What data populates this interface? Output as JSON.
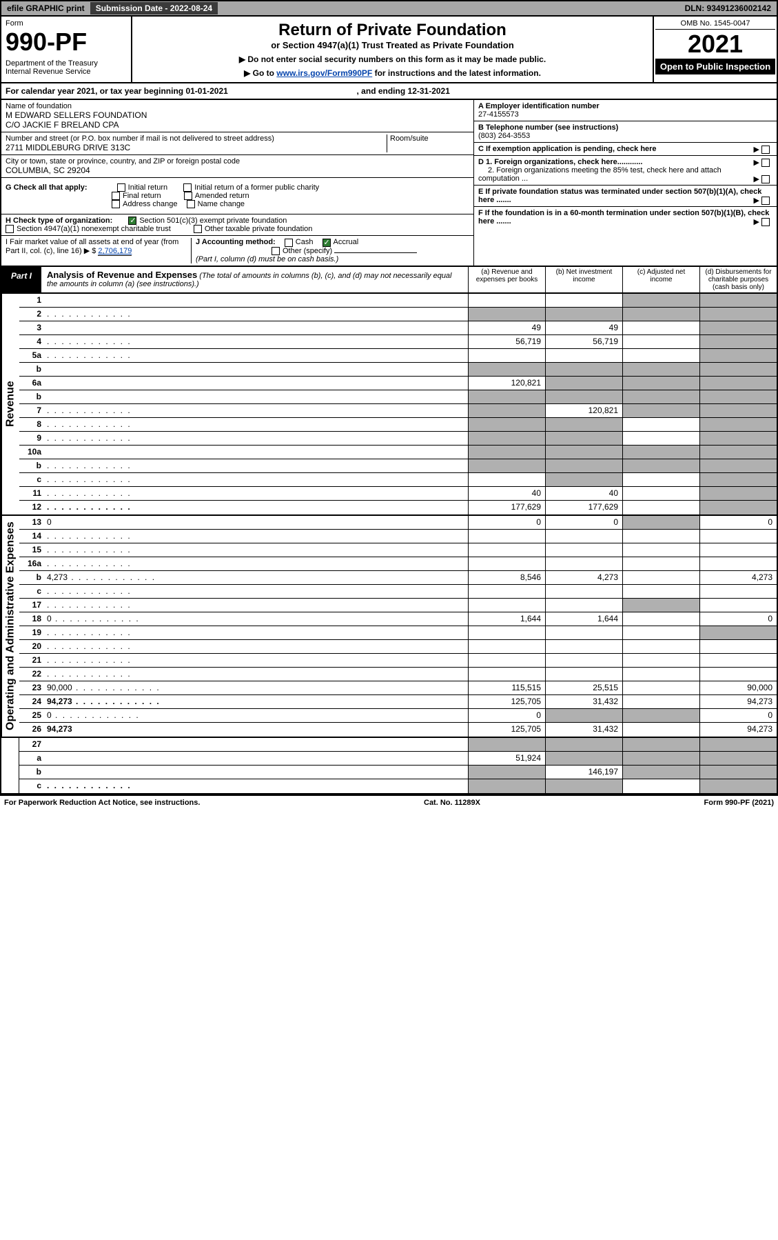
{
  "topbar": {
    "left": "efile GRAPHIC print",
    "sub": "Submission Date - 2022-08-24",
    "dln": "DLN: 93491236002142"
  },
  "header": {
    "form": "Form",
    "num": "990-PF",
    "dept": "Department of the Treasury\nInternal Revenue Service",
    "title": "Return of Private Foundation",
    "subtitle": "or Section 4947(a)(1) Trust Treated as Private Foundation",
    "note1": "▶ Do not enter social security numbers on this form as it may be made public.",
    "note2_pre": "▶ Go to ",
    "note2_link": "www.irs.gov/Form990PF",
    "note2_post": " for instructions and the latest information.",
    "omb": "OMB No. 1545-0047",
    "year": "2021",
    "open": "Open to Public Inspection"
  },
  "calendar": {
    "text": "For calendar year 2021, or tax year beginning 01-01-2021",
    "end": ", and ending 12-31-2021"
  },
  "id": {
    "name_label": "Name of foundation",
    "name": "M EDWARD SELLERS FOUNDATION\nC/O JACKIE F BRELAND CPA",
    "addr_label": "Number and street (or P.O. box number if mail is not delivered to street address)",
    "addr": "2711 MIDDLEBURG DRIVE 313C",
    "room_label": "Room/suite",
    "city_label": "City or town, state or province, country, and ZIP or foreign postal code",
    "city": "COLUMBIA, SC  29204",
    "ein_label": "A Employer identification number",
    "ein": "27-4155573",
    "tel_label": "B Telephone number (see instructions)",
    "tel": "(803) 264-3553",
    "c_label": "C If exemption application is pending, check here",
    "d1": "D 1. Foreign organizations, check here............",
    "d2": "2. Foreign organizations meeting the 85% test, check here and attach computation ...",
    "e": "E  If private foundation status was terminated under section 507(b)(1)(A), check here .......",
    "f": "F  If the foundation is in a 60-month termination under section 507(b)(1)(B), check here .......",
    "g_label": "G Check all that apply:",
    "g_opts": [
      "Initial return",
      "Initial return of a former public charity",
      "Final return",
      "Amended return",
      "Address change",
      "Name change"
    ],
    "h_label": "H Check type of organization:",
    "h1": "Section 501(c)(3) exempt private foundation",
    "h2": "Section 4947(a)(1) nonexempt charitable trust",
    "h3": "Other taxable private foundation",
    "i_label": "I Fair market value of all assets at end of year (from Part II, col. (c), line 16) ▶ $",
    "i_val": "2,706,179",
    "j_label": "J Accounting method:",
    "j_cash": "Cash",
    "j_accrual": "Accrual",
    "j_other": "Other (specify)",
    "j_note": "(Part I, column (d) must be on cash basis.)"
  },
  "part1": {
    "tab": "Part I",
    "title": "Analysis of Revenue and Expenses",
    "desc": "(The total of amounts in columns (b), (c), and (d) may not necessarily equal the amounts in column (a) (see instructions).)",
    "col_a": "(a)  Revenue and expenses per books",
    "col_b": "(b)  Net investment income",
    "col_c": "(c)  Adjusted net income",
    "col_d": "(d)  Disbursements for charitable purposes (cash basis only)"
  },
  "sides": {
    "rev": "Revenue",
    "ops": "Operating and Administrative Expenses"
  },
  "lines": [
    {
      "n": "1",
      "d": "",
      "a": "",
      "b": "",
      "c": "",
      "cgrey": true,
      "dgrey": true
    },
    {
      "n": "2",
      "d": "",
      "a": "",
      "b": "",
      "c": "",
      "agrey": true,
      "bgrey": true,
      "cgrey": true,
      "dgrey": true,
      "bold": false,
      "dots": true
    },
    {
      "n": "3",
      "d": "",
      "a": "49",
      "b": "49",
      "c": "",
      "dgrey": true
    },
    {
      "n": "4",
      "d": "",
      "a": "56,719",
      "b": "56,719",
      "c": "",
      "dgrey": true,
      "dots": true
    },
    {
      "n": "5a",
      "d": "",
      "a": "",
      "b": "",
      "c": "",
      "dgrey": true,
      "dots": true
    },
    {
      "n": "b",
      "d": "",
      "a": "",
      "b": "",
      "c": "",
      "agrey": true,
      "bgrey": true,
      "cgrey": true,
      "dgrey": true
    },
    {
      "n": "6a",
      "d": "",
      "a": "120,821",
      "b": "",
      "c": "",
      "bgrey": true,
      "cgrey": true,
      "dgrey": true
    },
    {
      "n": "b",
      "d": "",
      "a": "",
      "b": "",
      "c": "",
      "agrey": true,
      "bgrey": true,
      "cgrey": true,
      "dgrey": true
    },
    {
      "n": "7",
      "d": "",
      "a": "",
      "b": "120,821",
      "c": "",
      "agrey": true,
      "cgrey": true,
      "dgrey": true,
      "dots": true
    },
    {
      "n": "8",
      "d": "",
      "a": "",
      "b": "",
      "c": "",
      "agrey": true,
      "bgrey": true,
      "dgrey": true,
      "dots": true
    },
    {
      "n": "9",
      "d": "",
      "a": "",
      "b": "",
      "c": "",
      "agrey": true,
      "bgrey": true,
      "dgrey": true,
      "dots": true
    },
    {
      "n": "10a",
      "d": "",
      "a": "",
      "b": "",
      "c": "",
      "agrey": true,
      "bgrey": true,
      "cgrey": true,
      "dgrey": true
    },
    {
      "n": "b",
      "d": "",
      "a": "",
      "b": "",
      "c": "",
      "agrey": true,
      "bgrey": true,
      "cgrey": true,
      "dgrey": true,
      "dots": true
    },
    {
      "n": "c",
      "d": "",
      "a": "",
      "b": "",
      "c": "",
      "bgrey": true,
      "dgrey": true,
      "dots": true
    },
    {
      "n": "11",
      "d": "",
      "a": "40",
      "b": "40",
      "c": "",
      "dgrey": true,
      "dots": true
    },
    {
      "n": "12",
      "d": "",
      "a": "177,629",
      "b": "177,629",
      "c": "",
      "dgrey": true,
      "bold": true,
      "dots": true
    }
  ],
  "lines2": [
    {
      "n": "13",
      "d": "0",
      "a": "0",
      "b": "0",
      "c": "",
      "cgrey": true
    },
    {
      "n": "14",
      "d": "",
      "a": "",
      "b": "",
      "c": "",
      "dots": true
    },
    {
      "n": "15",
      "d": "",
      "a": "",
      "b": "",
      "c": "",
      "dots": true
    },
    {
      "n": "16a",
      "d": "",
      "a": "",
      "b": "",
      "c": "",
      "dots": true
    },
    {
      "n": "b",
      "d": "4,273",
      "a": "8,546",
      "b": "4,273",
      "c": "",
      "dots": true
    },
    {
      "n": "c",
      "d": "",
      "a": "",
      "b": "",
      "c": "",
      "dots": true
    },
    {
      "n": "17",
      "d": "",
      "a": "",
      "b": "",
      "c": "",
      "cgrey": true,
      "dots": true
    },
    {
      "n": "18",
      "d": "0",
      "a": "1,644",
      "b": "1,644",
      "c": "",
      "dots": true
    },
    {
      "n": "19",
      "d": "",
      "a": "",
      "b": "",
      "c": "",
      "dgrey": true,
      "dots": true
    },
    {
      "n": "20",
      "d": "",
      "a": "",
      "b": "",
      "c": "",
      "dots": true
    },
    {
      "n": "21",
      "d": "",
      "a": "",
      "b": "",
      "c": "",
      "dots": true
    },
    {
      "n": "22",
      "d": "",
      "a": "",
      "b": "",
      "c": "",
      "dots": true
    },
    {
      "n": "23",
      "d": "90,000",
      "a": "115,515",
      "b": "25,515",
      "c": "",
      "dots": true
    },
    {
      "n": "24",
      "d": "94,273",
      "a": "125,705",
      "b": "31,432",
      "c": "",
      "bold": true,
      "dots": true
    },
    {
      "n": "25",
      "d": "0",
      "a": "0",
      "b": "",
      "c": "",
      "bgrey": true,
      "cgrey": true,
      "dots": true
    },
    {
      "n": "26",
      "d": "94,273",
      "a": "125,705",
      "b": "31,432",
      "c": "",
      "bold": true
    }
  ],
  "lines3": [
    {
      "n": "27",
      "d": "",
      "a": "",
      "b": "",
      "c": "",
      "agrey": true,
      "bgrey": true,
      "cgrey": true,
      "dgrey": true
    },
    {
      "n": "a",
      "d": "",
      "a": "51,924",
      "b": "",
      "c": "",
      "bgrey": true,
      "cgrey": true,
      "dgrey": true,
      "bold": true
    },
    {
      "n": "b",
      "d": "",
      "a": "",
      "b": "146,197",
      "c": "",
      "agrey": true,
      "cgrey": true,
      "dgrey": true,
      "bold": true
    },
    {
      "n": "c",
      "d": "",
      "a": "",
      "b": "",
      "c": "",
      "agrey": true,
      "bgrey": true,
      "dgrey": true,
      "bold": true,
      "dots": true
    }
  ],
  "footer": {
    "left": "For Paperwork Reduction Act Notice, see instructions.",
    "mid": "Cat. No. 11289X",
    "right": "Form 990-PF (2021)"
  },
  "colors": {
    "topbar_bg": "#a7a7a7",
    "sub_bg": "#3a3a3a",
    "grey_cell": "#b0b0b0",
    "link": "#0645ad",
    "check": "#2e7d32"
  }
}
